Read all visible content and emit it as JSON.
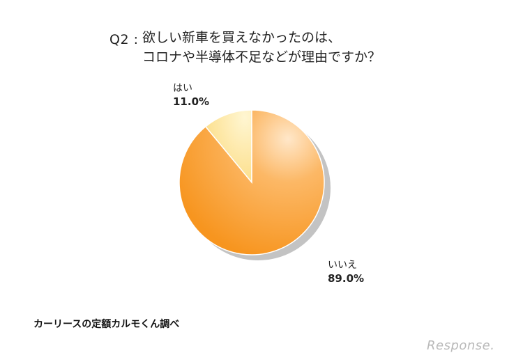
{
  "chart_data": {
    "type": "pie",
    "title_prefix": "Q2 :",
    "title_lines": [
      "欲しい新車を買えなかったのは、",
      "コロナや半導体不足などが理由ですか？"
    ],
    "categories": [
      "はい",
      "いいえ"
    ],
    "values": [
      11.0,
      89.0
    ],
    "value_labels": [
      "11.0%",
      "89.0%"
    ],
    "colors": [
      "#fde39a",
      "#f99a2e"
    ],
    "legend": "none"
  },
  "source": "カーリースの定額カルモくん調べ",
  "logo_text": "Response."
}
